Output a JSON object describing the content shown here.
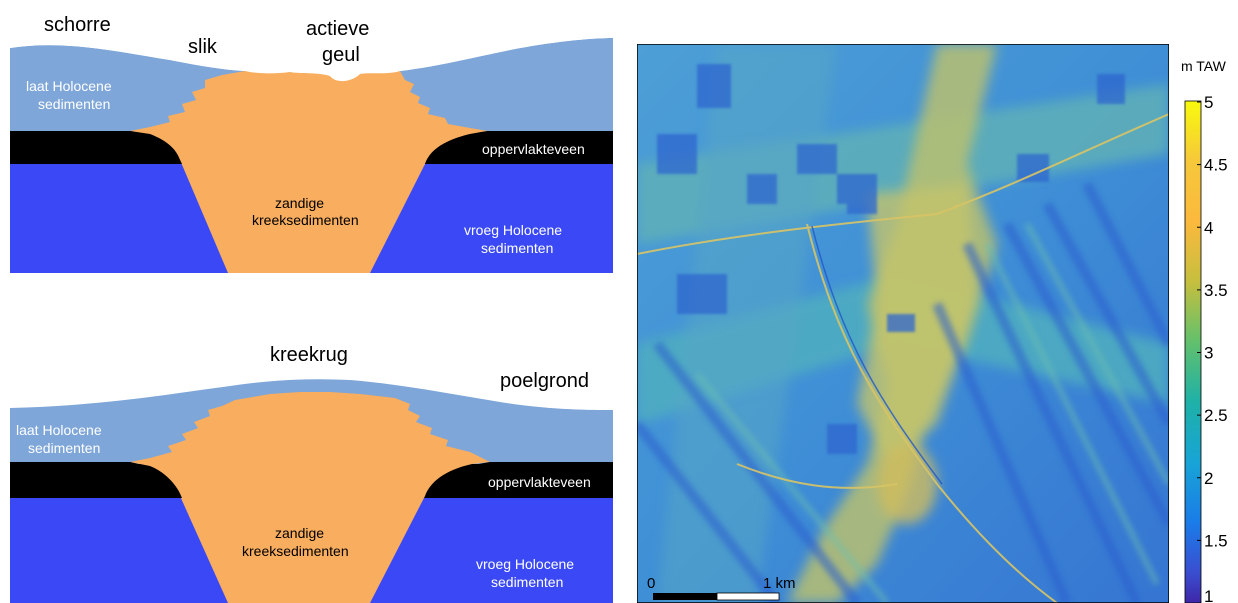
{
  "diagram_top": {
    "labels": {
      "schorre": "schorre",
      "slik": "slik",
      "actieve_geul_1": "actieve",
      "actieve_geul_2": "geul"
    },
    "layers": {
      "laat_holocene_1": "laat Holocene",
      "laat_holocene_2": "sedimenten",
      "oppervlakteveen": "oppervlakteveen",
      "zandige_1": "zandige",
      "zandige_2": "kreeksedimenten",
      "vroeg_holocene_1": "vroeg Holocene",
      "vroeg_holocene_2": "sedimenten"
    }
  },
  "diagram_bottom": {
    "labels": {
      "kreekrug": "kreekrug",
      "poelgrond": "poelgrond"
    },
    "layers": {
      "laat_holocene_1": "laat Holocene",
      "laat_holocene_2": "sedimenten",
      "oppervlakteveen": "oppervlakteveen",
      "zandige_1": "zandige",
      "zandige_2": "kreeksedimenten",
      "vroeg_holocene_1": "vroeg Holocene",
      "vroeg_holocene_2": "sedimenten"
    }
  },
  "map": {
    "colorbar_unit": "m TAW",
    "ticks": [
      "5",
      "4.5",
      "4",
      "3.5",
      "3",
      "2.5",
      "2",
      "1.5",
      "1"
    ],
    "tick_values": [
      5,
      4.5,
      4,
      3.5,
      3,
      2.5,
      2,
      1.5,
      1
    ],
    "scalebar_start": "0",
    "scalebar_end": "1 km"
  },
  "colors": {
    "laat_holocene": "#7ea6d8",
    "veen": "#000000",
    "zand": "#f8ad5f",
    "vroeg_holocene": "#3a49f5"
  }
}
